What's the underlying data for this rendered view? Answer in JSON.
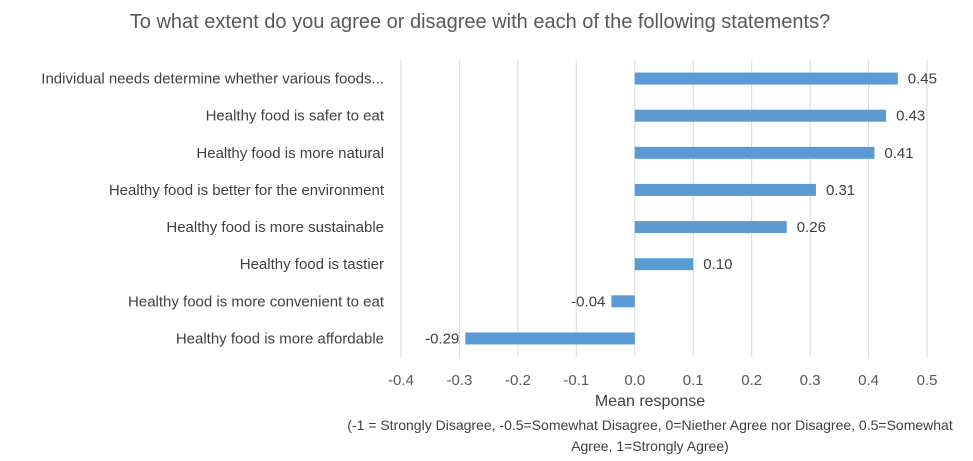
{
  "chart_data": {
    "type": "bar",
    "orientation": "horizontal",
    "title": "To what extent do you agree or disagree with each of the following statements?",
    "categories": [
      "Individual needs determine whether various foods...",
      "Healthy  food is safer to eat",
      "Healthy food is more natural",
      "Healthy food is better for the environment",
      "Healthy food is more sustainable",
      "Healthy food is tastier",
      "Healthy food is more convenient to eat",
      "Healthy food is more affordable"
    ],
    "values": [
      0.45,
      0.43,
      0.41,
      0.31,
      0.26,
      0.1,
      -0.04,
      -0.29
    ],
    "data_labels": [
      "0.45",
      "0.43",
      "0.41",
      "0.31",
      "0.26",
      "0.10",
      "-0.04",
      "-0.29"
    ],
    "xlim": [
      -0.4,
      0.5
    ],
    "xticks": [
      "-0.4",
      "-0.3",
      "-0.2",
      "-0.1",
      "0.0",
      "0.1",
      "0.2",
      "0.3",
      "0.4",
      "0.5"
    ],
    "xlabel": "Mean response",
    "note": "(-1 = Strongly Disagree, -0.5=Somewhat Disagree, 0=Niether Agree nor Disagree, 0.5=Somewhat Agree, 1=Strongly Agree)",
    "grid": true,
    "bar_color": "#5B9BD5",
    "grid_color": "#D9D9D9"
  }
}
